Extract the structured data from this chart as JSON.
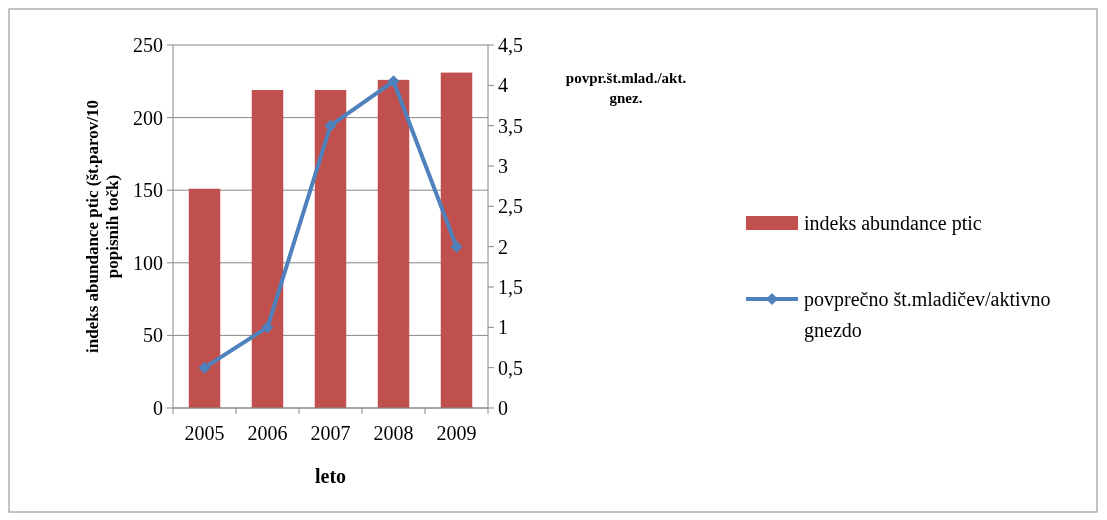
{
  "chart_data": {
    "type": "bar",
    "xlabel": "leto",
    "ylabel": "indeks abundance ptic (št.parov/10 popisnih točk)",
    "y2label": "povpr.št.mlad./akt. gnez.",
    "categories": [
      "2005",
      "2006",
      "2007",
      "2008",
      "2009"
    ],
    "series": [
      {
        "name": "indeks abundance ptic",
        "color": "#c0504d",
        "values": [
          151,
          219,
          219,
          226,
          231
        ]
      },
      {
        "name": "povprečno št.mladičev/aktivno gnezdo",
        "type": "line",
        "axis": "y2",
        "marker": "diamond",
        "color": "#4f81bd",
        "values": [
          0.5,
          1,
          3.5,
          4.05,
          2
        ]
      }
    ],
    "ylim": [
      0,
      250
    ],
    "yticks": [
      0,
      50,
      100,
      150,
      200,
      250
    ],
    "y2lim": [
      0,
      4.5
    ],
    "y2ticks": [
      0,
      {
        "value": 0.5,
        "label": "0,5"
      },
      1,
      {
        "value": 1.5,
        "label": "1,5"
      },
      2,
      {
        "value": 2.5,
        "label": "2,5"
      },
      3,
      {
        "value": 3.5,
        "label": "3,5"
      },
      4,
      {
        "value": 4.5,
        "label": "4,5"
      }
    ],
    "grid": "y",
    "legend": "right"
  }
}
